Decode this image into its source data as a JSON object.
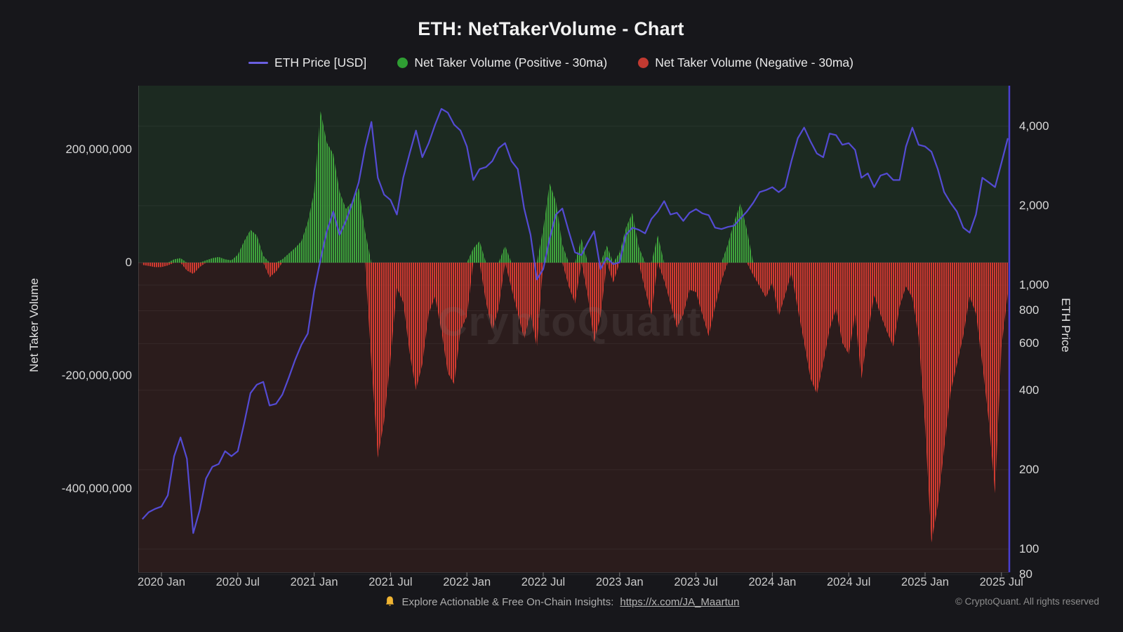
{
  "page": {
    "title": "ETH: NetTakerVolume - Chart"
  },
  "legend": [
    {
      "label": "ETH Price [USD]",
      "marker": "line",
      "color": "#6a5fe0"
    },
    {
      "label": "Net Taker Volume (Positive - 30ma)",
      "marker": "circle",
      "color": "#2f9e33"
    },
    {
      "label": "Net Taker Volume (Negative - 30ma)",
      "marker": "circle",
      "color": "#c23a31"
    }
  ],
  "watermark": "CryptoQuant",
  "footer": {
    "bell_icon": "bell-icon",
    "insight_text": "Explore Actionable & Free On-Chain Insights:",
    "link_text": "https://x.com/JA_Maartun",
    "copyright": "© CryptoQuant. All rights reserved"
  },
  "axes": {
    "left": {
      "title": "Net Taker Volume",
      "tick_labels": [
        "200,000,000",
        "0",
        "-200,000,000",
        "-400,000,000"
      ],
      "tick_values_millions": [
        200,
        0,
        -200,
        -400
      ]
    },
    "right": {
      "title": "ETH Price",
      "tick_labels": [
        "4,000",
        "2,000",
        "1,000",
        "800",
        "600",
        "400",
        "200",
        "100",
        "80"
      ],
      "tick_values": [
        4000,
        2000,
        1000,
        800,
        600,
        400,
        200,
        100,
        80
      ]
    },
    "x": {
      "tick_labels": [
        "2020 Jan",
        "2020 Jul",
        "2021 Jan",
        "2021 Jul",
        "2022 Jan",
        "2022 Jul",
        "2023 Jan",
        "2023 Jul",
        "2024 Jan",
        "2024 Jul",
        "2025 Jan",
        "2025 Jul"
      ]
    }
  },
  "chart_data": {
    "type": "combo",
    "title": "ETH: NetTakerVolume - Chart",
    "x_start": "2019-11-16",
    "samples_per_month": 2,
    "x_range": [
      "2019-11-16",
      "2025-07-16"
    ],
    "left_axis": {
      "label": "Net Taker Volume",
      "ylim_millions": [
        -548,
        313
      ],
      "gridlines": false
    },
    "right_axis": {
      "label": "ETH Price",
      "scale": "log",
      "ylim": [
        82,
        5690
      ],
      "gridlines": true
    },
    "legend_position": "top-center",
    "series": [
      {
        "name": "ETH Price [USD]",
        "type": "line",
        "axis": "right",
        "color": "#544bd3",
        "unit": "USD",
        "values": [
          130,
          138,
          142,
          145,
          160,
          225,
          265,
          220,
          115,
          140,
          185,
          205,
          210,
          235,
          225,
          235,
          300,
          390,
          420,
          430,
          350,
          355,
          385,
          445,
          520,
          595,
          655,
          950,
          1250,
          1600,
          1900,
          1550,
          1750,
          2050,
          2450,
          3300,
          4150,
          2550,
          2200,
          2100,
          1850,
          2550,
          3150,
          3850,
          3050,
          3450,
          4050,
          4650,
          4500,
          4050,
          3850,
          3350,
          2500,
          2750,
          2800,
          2950,
          3300,
          3450,
          2950,
          2750,
          1950,
          1550,
          1050,
          1150,
          1500,
          1850,
          1950,
          1600,
          1330,
          1300,
          1450,
          1600,
          1150,
          1270,
          1200,
          1220,
          1550,
          1650,
          1620,
          1570,
          1780,
          1900,
          2080,
          1850,
          1880,
          1750,
          1880,
          1940,
          1870,
          1840,
          1650,
          1630,
          1660,
          1680,
          1790,
          1900,
          2050,
          2250,
          2290,
          2350,
          2250,
          2350,
          2950,
          3600,
          3950,
          3500,
          3150,
          3050,
          3750,
          3700,
          3400,
          3450,
          3250,
          2550,
          2650,
          2350,
          2600,
          2650,
          2500,
          2500,
          3350,
          3950,
          3400,
          3350,
          3200,
          2750,
          2250,
          2050,
          1900,
          1650,
          1580,
          1850,
          2550,
          2450,
          2350,
          2900,
          3600
        ]
      },
      {
        "name": "Net Taker Volume (30ma)",
        "type": "area-bars",
        "axis": "left",
        "positive_name": "Net Taker Volume (Positive - 30ma)",
        "negative_name": "Net Taker Volume (Negative - 30ma)",
        "positive_color": "#3fa33c",
        "negative_color": "#d23b31",
        "unit": "million USD",
        "values": [
          -4,
          -6,
          -8,
          -8,
          -5,
          6,
          8,
          -14,
          -20,
          -8,
          4,
          8,
          10,
          6,
          4,
          14,
          38,
          58,
          48,
          12,
          -26,
          -16,
          6,
          16,
          26,
          38,
          72,
          125,
          268,
          212,
          192,
          125,
          95,
          108,
          132,
          55,
          -180,
          -345,
          -280,
          -170,
          -45,
          -70,
          -160,
          -225,
          -180,
          -90,
          -60,
          -120,
          -195,
          -215,
          -120,
          -95,
          25,
          38,
          -70,
          -120,
          -80,
          30,
          -45,
          -90,
          -135,
          -90,
          -150,
          60,
          140,
          108,
          32,
          -42,
          -72,
          42,
          -60,
          -140,
          -95,
          30,
          -35,
          18,
          62,
          88,
          28,
          -48,
          -92,
          48,
          -32,
          -72,
          -115,
          -92,
          -48,
          -52,
          -92,
          -130,
          -78,
          -32,
          32,
          72,
          105,
          58,
          -22,
          -42,
          -62,
          -35,
          -95,
          -58,
          -18,
          -82,
          -142,
          -205,
          -232,
          -178,
          -118,
          -82,
          -142,
          -162,
          -92,
          -205,
          -125,
          -58,
          -92,
          -122,
          -148,
          -78,
          -42,
          -62,
          -132,
          -290,
          -495,
          -430,
          -330,
          -230,
          -180,
          -130,
          -60,
          -90,
          -180,
          -280,
          -408,
          -150,
          -55
        ]
      }
    ]
  },
  "colors": {
    "page_bg": "#17171b",
    "plot_bg_positive": "#1c2a21",
    "plot_bg_negative": "#2b1c1c",
    "price_line": "#544bd3",
    "right_axis_line": "#4a3fd0",
    "positive_fill": "#3fa33c",
    "negative_fill": "#d23b31",
    "bell": "#f0b432"
  }
}
